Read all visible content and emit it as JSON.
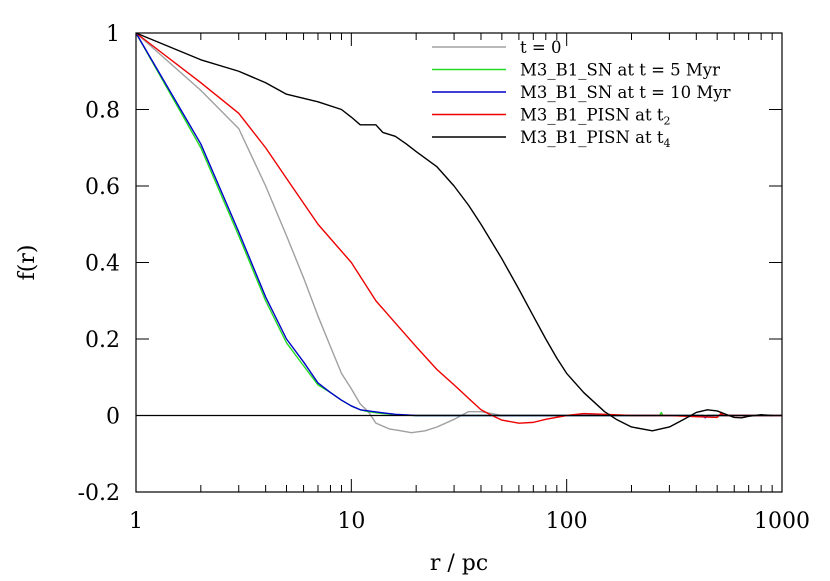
{
  "chart_data": {
    "type": "line",
    "title": "",
    "xlabel": "r / pc",
    "ylabel": "f(r)",
    "xscale": "log",
    "xlim": [
      1,
      1000
    ],
    "ylim": [
      -0.2,
      1
    ],
    "xticks": [
      {
        "value": 1,
        "label": "1"
      },
      {
        "value": 10,
        "label": "10"
      },
      {
        "value": 100,
        "label": "100"
      },
      {
        "value": 1000,
        "label": "1000"
      }
    ],
    "yticks": [
      {
        "value": -0.2,
        "label": "-0.2"
      },
      {
        "value": 0,
        "label": "0"
      },
      {
        "value": 0.2,
        "label": "0.2"
      },
      {
        "value": 0.4,
        "label": "0.4"
      },
      {
        "value": 0.6,
        "label": "0.6"
      },
      {
        "value": 0.8,
        "label": "0.8"
      },
      {
        "value": 1,
        "label": "1"
      }
    ],
    "zero_line": true,
    "grid": false,
    "legend_position": "top-right",
    "series": [
      {
        "name": "t = 0",
        "legend_main": "t = 0",
        "legend_sub": "",
        "color": "#a0a0a0",
        "points": [
          [
            1,
            1
          ],
          [
            2,
            0.85
          ],
          [
            3,
            0.75
          ],
          [
            4,
            0.6
          ],
          [
            5,
            0.47
          ],
          [
            6,
            0.36
          ],
          [
            7,
            0.26
          ],
          [
            8,
            0.18
          ],
          [
            9,
            0.11
          ],
          [
            10,
            0.07
          ],
          [
            11,
            0.03
          ],
          [
            12,
            0.01
          ],
          [
            13,
            -0.02
          ],
          [
            15,
            -0.035
          ],
          [
            17,
            -0.04
          ],
          [
            19,
            -0.045
          ],
          [
            22,
            -0.04
          ],
          [
            25,
            -0.03
          ],
          [
            30,
            -0.01
          ],
          [
            35,
            0.01
          ],
          [
            40,
            0.01
          ],
          [
            45,
            0.005
          ],
          [
            50,
            0
          ],
          [
            70,
            0
          ],
          [
            100,
            0
          ],
          [
            1000,
            0
          ]
        ]
      },
      {
        "name": "M3_B1_SN at t = 5 Myr",
        "legend_main": "M3_B1_SN at t = 5 Myr",
        "legend_sub": "",
        "color": "#22dd22",
        "points": [
          [
            1,
            1
          ],
          [
            2,
            0.7
          ],
          [
            3,
            0.47
          ],
          [
            4,
            0.3
          ],
          [
            5,
            0.19
          ],
          [
            6,
            0.13
          ],
          [
            7,
            0.08
          ],
          [
            8,
            0.06
          ],
          [
            9,
            0.04
          ],
          [
            10,
            0.025
          ],
          [
            11,
            0.015
          ],
          [
            12,
            0.01
          ],
          [
            14,
            0.005
          ],
          [
            16,
            0.002
          ],
          [
            20,
            0
          ],
          [
            50,
            0
          ],
          [
            100,
            0
          ],
          [
            200,
            0
          ],
          [
            270,
            0
          ],
          [
            275,
            0.008
          ],
          [
            280,
            0
          ],
          [
            500,
            0
          ],
          [
            1000,
            0
          ]
        ]
      },
      {
        "name": "M3_B1_SN at t = 10 Myr",
        "legend_main": "M3_B1_SN at t = 10 Myr",
        "legend_sub": "",
        "color": "#0000cc",
        "points": [
          [
            1,
            1
          ],
          [
            2,
            0.71
          ],
          [
            3,
            0.48
          ],
          [
            4,
            0.31
          ],
          [
            5,
            0.2
          ],
          [
            6,
            0.14
          ],
          [
            7,
            0.085
          ],
          [
            8,
            0.06
          ],
          [
            9,
            0.04
          ],
          [
            10,
            0.025
          ],
          [
            11,
            0.015
          ],
          [
            12,
            0.012
          ],
          [
            14,
            0.007
          ],
          [
            16,
            0.003
          ],
          [
            20,
            0
          ],
          [
            50,
            0
          ],
          [
            100,
            0
          ],
          [
            200,
            0
          ],
          [
            430,
            0
          ],
          [
            440,
            -0.006
          ],
          [
            450,
            0
          ],
          [
            1000,
            0
          ]
        ]
      },
      {
        "name": "M3_B1_PISN at t2",
        "legend_main": "M3_B1_PISN at t",
        "legend_sub": "2",
        "color": "#ee0000",
        "points": [
          [
            1,
            1
          ],
          [
            2,
            0.87
          ],
          [
            3,
            0.79
          ],
          [
            4,
            0.7
          ],
          [
            5,
            0.62
          ],
          [
            7,
            0.5
          ],
          [
            10,
            0.4
          ],
          [
            13,
            0.3
          ],
          [
            15,
            0.26
          ],
          [
            20,
            0.18
          ],
          [
            25,
            0.12
          ],
          [
            30,
            0.08
          ],
          [
            35,
            0.045
          ],
          [
            40,
            0.015
          ],
          [
            45,
            0
          ],
          [
            50,
            -0.012
          ],
          [
            60,
            -0.02
          ],
          [
            70,
            -0.018
          ],
          [
            80,
            -0.01
          ],
          [
            100,
            0
          ],
          [
            120,
            0.005
          ],
          [
            150,
            0.003
          ],
          [
            200,
            0
          ],
          [
            300,
            0
          ],
          [
            400,
            -0.003
          ],
          [
            500,
            -0.005
          ],
          [
            520,
            0.005
          ],
          [
            540,
            0
          ],
          [
            1000,
            0
          ]
        ]
      },
      {
        "name": "M3_B1_PISN at t4",
        "legend_main": "M3_B1_PISN at t",
        "legend_sub": "4",
        "color": "#000000",
        "points": [
          [
            1,
            1
          ],
          [
            2,
            0.93
          ],
          [
            3,
            0.9
          ],
          [
            4,
            0.87
          ],
          [
            5,
            0.84
          ],
          [
            7,
            0.82
          ],
          [
            9,
            0.8
          ],
          [
            10,
            0.78
          ],
          [
            11,
            0.76
          ],
          [
            13,
            0.76
          ],
          [
            14,
            0.74
          ],
          [
            16,
            0.73
          ],
          [
            18,
            0.71
          ],
          [
            20,
            0.69
          ],
          [
            25,
            0.65
          ],
          [
            30,
            0.6
          ],
          [
            35,
            0.55
          ],
          [
            40,
            0.5
          ],
          [
            50,
            0.41
          ],
          [
            60,
            0.33
          ],
          [
            70,
            0.26
          ],
          [
            80,
            0.2
          ],
          [
            90,
            0.15
          ],
          [
            100,
            0.11
          ],
          [
            120,
            0.06
          ],
          [
            150,
            0.01
          ],
          [
            170,
            -0.01
          ],
          [
            200,
            -0.03
          ],
          [
            250,
            -0.04
          ],
          [
            300,
            -0.03
          ],
          [
            350,
            -0.01
          ],
          [
            400,
            0.008
          ],
          [
            450,
            0.015
          ],
          [
            500,
            0.012
          ],
          [
            550,
            0.003
          ],
          [
            600,
            -0.005
          ],
          [
            650,
            -0.006
          ],
          [
            700,
            -0.002
          ],
          [
            800,
            0.002
          ],
          [
            900,
            0
          ]
        ]
      }
    ]
  }
}
